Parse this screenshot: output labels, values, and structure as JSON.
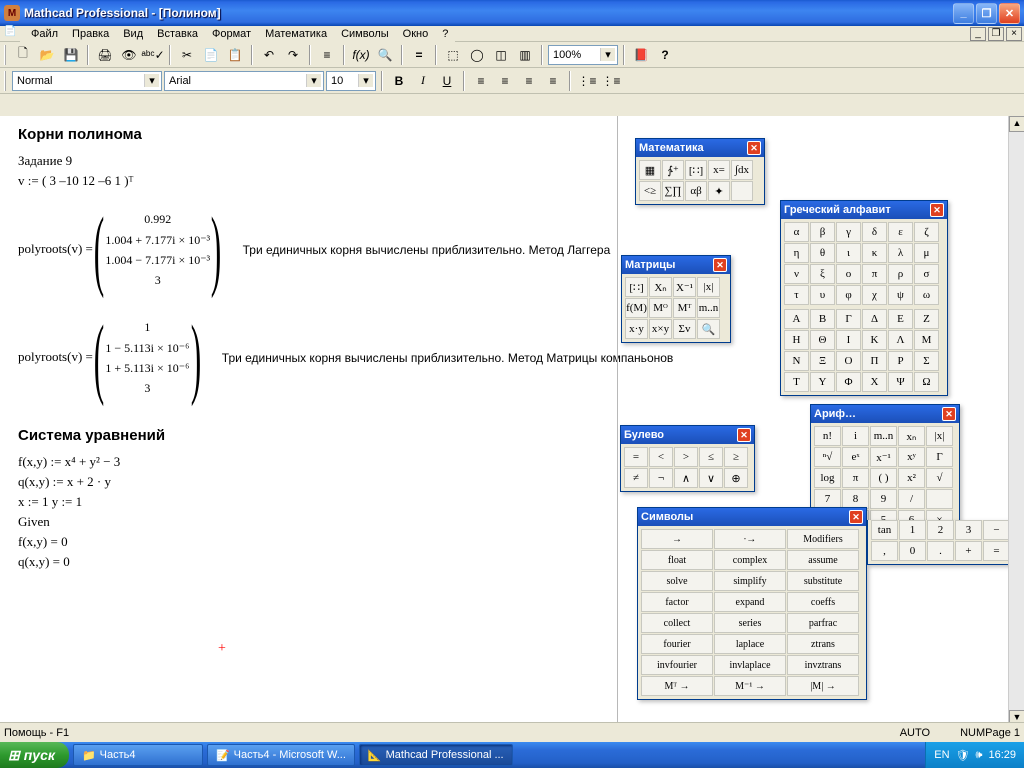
{
  "window": {
    "title": "Mathcad Professional - [Полином]",
    "buttons": {
      "min": "_",
      "max": "❐",
      "close": "✕"
    }
  },
  "mdi": {
    "min": "_",
    "restore": "❐",
    "close": "×"
  },
  "menu": [
    "Файл",
    "Правка",
    "Вид",
    "Вставка",
    "Формат",
    "Математика",
    "Символы",
    "Окно",
    "?"
  ],
  "toolbar1": {
    "zoom": "100%",
    "icons": [
      "🗋",
      "📂",
      "💾",
      "|",
      "🖨",
      "👁",
      "✓",
      "|",
      "✂",
      "📄",
      "📋",
      "|",
      "↶",
      "↷",
      "|",
      "≡",
      "|",
      "f(x)",
      "🔍",
      "|",
      "=",
      "|",
      "⬚",
      "◯",
      "◫",
      "▥",
      "|",
      "100%",
      "|",
      "📕",
      "?"
    ]
  },
  "toolbar2": {
    "style": "Normal",
    "font": "Arial",
    "size": "10",
    "btns": [
      "B",
      "I",
      "U",
      "|",
      "≡",
      "≡",
      "≡",
      "≡",
      "|",
      "⋮≡",
      "⋮≡"
    ]
  },
  "worksheet": {
    "heading1": "Корни полинома",
    "task": "Задание 9",
    "vline": "v := ( 3  –10  12  –6  1 )ᵀ",
    "r1label": "polyroots(v) =",
    "r1vals": [
      "0.992",
      "1.004 + 7.177i × 10⁻³",
      "1.004 − 7.177i × 10⁻³",
      "3"
    ],
    "r1comment": "Три единичных корня вычислены приблизительно. Метод Лаггера",
    "r2label": "polyroots(v) =",
    "r2vals": [
      "1",
      "1 − 5.113i × 10⁻⁶",
      "1 + 5.113i × 10⁻⁶",
      "3"
    ],
    "r2comment": "Три единичных корня вычислены приблизительно. Метод Матрицы компаньонов",
    "heading2": "Система уравнений",
    "eq1": "f(x,y) := x⁴ + y² − 3",
    "eq2": "q(x,y) := x + 2 · y",
    "in1": "x := 1       y := 1",
    "given": "Given",
    "eq3": "f(x,y) = 0",
    "eq4": "q(x,y) = 0"
  },
  "palettes": {
    "math": {
      "title": "Математика",
      "rows": [
        [
          "▦",
          "∱⁺",
          "[∷]",
          "x=",
          "∫dx"
        ],
        [
          "<≥",
          "∑∏",
          "αβ",
          "✦",
          ""
        ]
      ]
    },
    "matrix": {
      "title": "Матрицы",
      "rows": [
        [
          "[∷]",
          "Xₙ",
          "X⁻¹",
          "|x|"
        ],
        [
          "f(M)",
          "Mᴼ",
          "Mᵀ",
          "m..n"
        ],
        [
          "x·y",
          "x×y",
          "Σv",
          "🔍"
        ]
      ]
    },
    "greek": {
      "title": "Греческий алфавит",
      "lower": [
        [
          "α",
          "β",
          "γ",
          "δ",
          "ε",
          "ζ"
        ],
        [
          "η",
          "θ",
          "ι",
          "κ",
          "λ",
          "μ"
        ],
        [
          "ν",
          "ξ",
          "ο",
          "π",
          "ρ",
          "σ"
        ],
        [
          "τ",
          "υ",
          "φ",
          "χ",
          "ψ",
          "ω"
        ]
      ],
      "upper": [
        [
          "Α",
          "Β",
          "Γ",
          "Δ",
          "Ε",
          "Ζ"
        ],
        [
          "Η",
          "Θ",
          "Ι",
          "Κ",
          "Λ",
          "Μ"
        ],
        [
          "Ν",
          "Ξ",
          "Ο",
          "Π",
          "Ρ",
          "Σ"
        ],
        [
          "Τ",
          "Υ",
          "Φ",
          "Χ",
          "Ψ",
          "Ω"
        ]
      ]
    },
    "bool": {
      "title": "Булево",
      "rows": [
        [
          "=",
          "<",
          ">",
          "≤",
          "≥"
        ],
        [
          "≠",
          "¬",
          "∧",
          "∨",
          "⊕"
        ]
      ]
    },
    "arith": {
      "title": "Ариф…",
      "rows": [
        [
          "n!",
          "i",
          "m..n",
          "xₙ",
          "|x|"
        ],
        [
          "ⁿ√",
          "eˣ",
          "x⁻¹",
          "xʸ",
          "Γ"
        ],
        [
          "log",
          "π",
          "( )",
          "x²",
          "√"
        ],
        [
          "7",
          "8",
          "9",
          "/",
          ""
        ],
        [
          "cos",
          "4",
          "5",
          "6",
          "×"
        ]
      ]
    },
    "symb": {
      "title": "Символы",
      "rows": [
        [
          "→",
          "∙→",
          "Modifiers"
        ],
        [
          "float",
          "complex",
          "assume"
        ],
        [
          "solve",
          "simplify",
          "substitute"
        ],
        [
          "factor",
          "expand",
          "coeffs"
        ],
        [
          "collect",
          "series",
          "parfrac"
        ],
        [
          "fourier",
          "laplace",
          "ztrans"
        ],
        [
          "invfourier",
          "invlaplace",
          "invztrans"
        ],
        [
          "Mᵀ →",
          "M⁻¹ →",
          "|M| →"
        ]
      ]
    },
    "extra": {
      "rows": [
        [
          "tan",
          "1",
          "2",
          "3",
          "−"
        ],
        [
          ",",
          "0",
          ".",
          "+",
          "="
        ]
      ]
    }
  },
  "status": {
    "help": "Помощь - F1",
    "auto": "AUTO",
    "num": "NUM",
    "page": "Page 1"
  },
  "taskbar": {
    "start": "пуск",
    "items": [
      {
        "label": "Часть4",
        "active": false,
        "icon": "📁"
      },
      {
        "label": "Часть4 - Microsoft W...",
        "active": false,
        "icon": "📝"
      },
      {
        "label": "Mathcad Professional ...",
        "active": true,
        "icon": "📐"
      }
    ],
    "tray": {
      "lang": "EN",
      "time": "16:29"
    }
  },
  "colors": {
    "bg": "#ece9d8",
    "titlebar": "#2a6ae4",
    "palette_head": "#2a6ae4"
  }
}
